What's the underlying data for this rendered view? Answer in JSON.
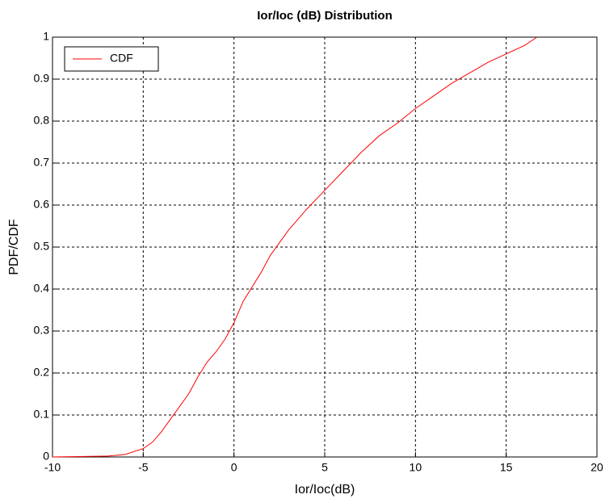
{
  "chart_data": {
    "type": "line",
    "title": "Ior/Ioc (dB) Distribution",
    "x_label": "Ior/Ioc(dB)",
    "y_label": "PDF/CDF",
    "x": [
      -10,
      -7,
      -6,
      -5,
      -4.5,
      -4,
      -3.5,
      -3,
      -2.5,
      -2,
      -1.5,
      -1,
      -0.5,
      0,
      0.5,
      1,
      1.5,
      2,
      2.5,
      3,
      3.5,
      4,
      5,
      6,
      7,
      8,
      9,
      10,
      11,
      12,
      13,
      14,
      15,
      16,
      16.7
    ],
    "series": [
      {
        "name": "CDF",
        "color": "#ff0000",
        "values": [
          0,
          0.002,
          0.006,
          0.02,
          0.035,
          0.06,
          0.09,
          0.12,
          0.15,
          0.19,
          0.225,
          0.25,
          0.28,
          0.32,
          0.37,
          0.405,
          0.44,
          0.48,
          0.51,
          0.54,
          0.565,
          0.59,
          0.635,
          0.68,
          0.725,
          0.765,
          0.795,
          0.83,
          0.86,
          0.89,
          0.915,
          0.94,
          0.96,
          0.98,
          1
        ]
      }
    ],
    "xlim": [
      -10,
      20
    ],
    "ylim": [
      0,
      1
    ],
    "xticks": [
      -10,
      -5,
      0,
      5,
      10,
      15,
      20
    ],
    "yticks": [
      0,
      0.1,
      0.2,
      0.3,
      0.4,
      0.5,
      0.6,
      0.7,
      0.8,
      0.9,
      1
    ],
    "grid": true,
    "legend": "upper left"
  }
}
